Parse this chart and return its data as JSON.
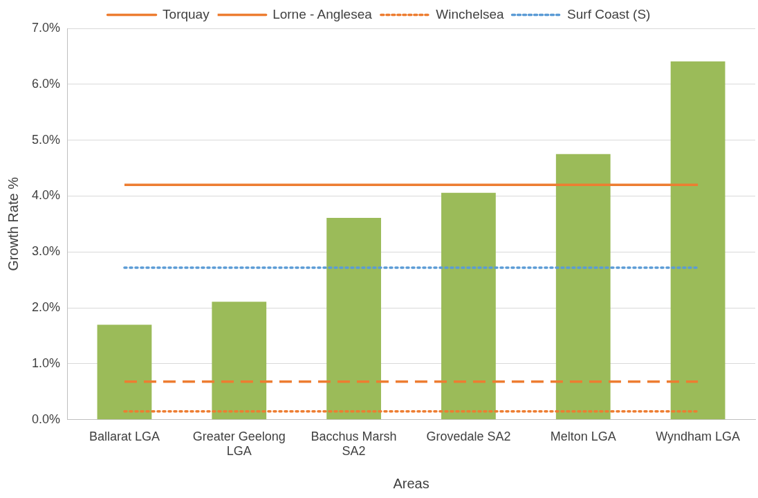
{
  "chart_data": {
    "type": "bar",
    "xlabel": "Areas",
    "ylabel": "Growth Rate %",
    "categories": [
      "Ballarat LGA",
      "Greater Geelong LGA",
      "Bacchus Marsh SA2",
      "Grovedale SA2",
      "Melton LGA",
      "Wyndham LGA"
    ],
    "series": [
      {
        "color": "#9bbb59",
        "values": [
          1.7,
          2.11,
          3.61,
          4.06,
          4.75,
          6.41
        ]
      },
      {
        "name": "Torquay",
        "type": "line",
        "color": "#ed7d31",
        "line_style": "solid",
        "values": [
          4.2,
          4.2,
          4.2,
          4.2,
          4.2,
          4.2
        ]
      },
      {
        "name": "Lorne - Anglesea",
        "type": "line",
        "color": "#ed7d31",
        "line_style": "dashed",
        "values": [
          0.68,
          0.68,
          0.68,
          0.68,
          0.68,
          0.68
        ]
      },
      {
        "name": "Winchelsea",
        "type": "line",
        "color": "#ed7d31",
        "line_style": "dotted",
        "values": [
          0.15,
          0.15,
          0.15,
          0.15,
          0.15,
          0.15
        ]
      },
      {
        "name": "Surf Coast (S)",
        "type": "line",
        "color": "#5b9bd5",
        "line_style": "dotted",
        "values": [
          2.72,
          2.72,
          2.72,
          2.72,
          2.72,
          2.72
        ]
      }
    ],
    "ylim": [
      0,
      7
    ],
    "yticks": [
      {
        "value": 0,
        "label": "0.0%"
      },
      {
        "value": 1,
        "label": "1.0%"
      },
      {
        "value": 2,
        "label": "2.0%"
      },
      {
        "value": 3,
        "label": "3.0%"
      },
      {
        "value": 4,
        "label": "4.0%"
      },
      {
        "value": 5,
        "label": "5.0%"
      },
      {
        "value": 6,
        "label": "6.0%"
      },
      {
        "value": 7,
        "label": "7.0%"
      }
    ],
    "grid": "y",
    "legend": "top",
    "marker": "none"
  }
}
